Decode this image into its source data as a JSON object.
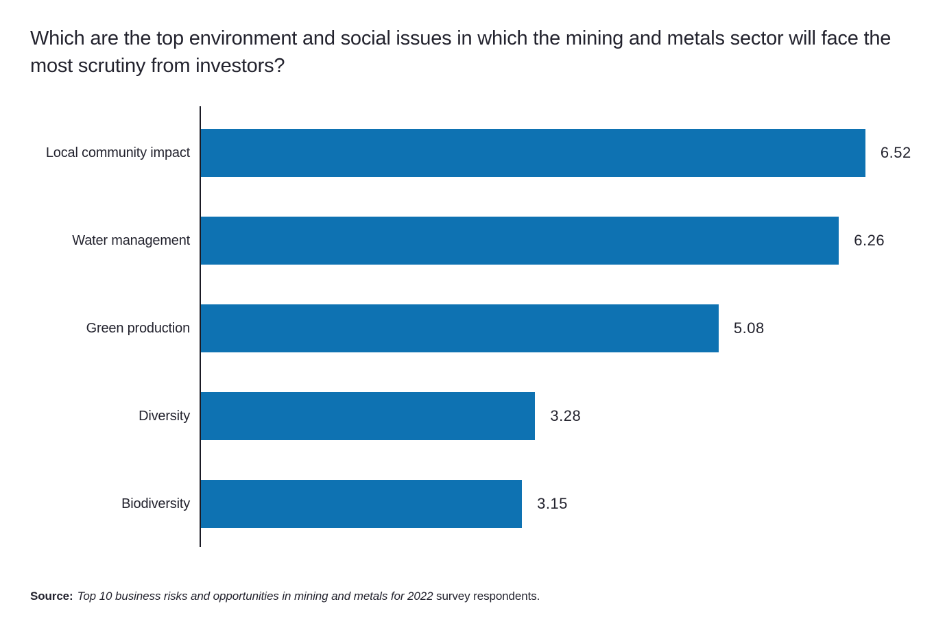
{
  "title": "Which are the top environment and social issues in which the mining and metals sector will face the most scrutiny from investors?",
  "source": {
    "label": "Source:",
    "italic_text": "Top 10 business risks and opportunities in mining and metals for 2022",
    "regular_text": " survey respondents."
  },
  "colors": {
    "bar": "#0e72b2",
    "axis": "#1a1a24",
    "text": "#23232e"
  },
  "chart_data": {
    "type": "bar",
    "orientation": "horizontal",
    "title": "Which are the top environment and social issues in which the mining and metals sector will face the most scrutiny from investors?",
    "categories": [
      "Local community impact",
      "Water management",
      "Green production",
      "Diversity",
      "Biodiversity"
    ],
    "values": [
      6.52,
      6.26,
      5.08,
      3.28,
      3.15
    ],
    "value_labels": [
      "6.52",
      "6.26",
      "5.08",
      "3.28",
      "3.15"
    ],
    "xlabel": "",
    "ylabel": "",
    "xlim": [
      0,
      6.75
    ],
    "grid": false,
    "legend": false,
    "bar_color": "#0e72b2"
  }
}
